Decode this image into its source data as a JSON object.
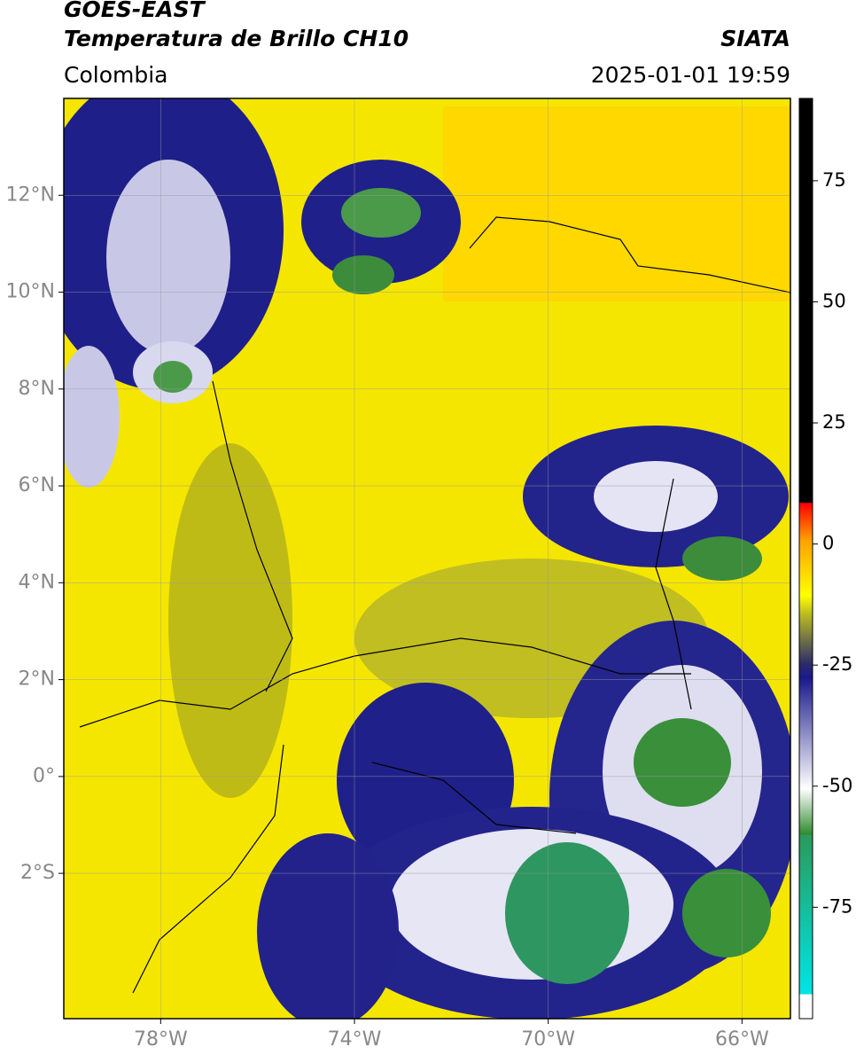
{
  "header": {
    "title": "GOES-EAST",
    "subtitle": "Temperatura de Brillo CH10",
    "region": "Colombia",
    "source": "SIATA",
    "datetime": "2025-01-01 19:59"
  },
  "map": {
    "xlim": [
      -80,
      -65
    ],
    "ylim": [
      -5,
      14
    ],
    "xticks": [
      {
        "value": -78,
        "label": "78°W"
      },
      {
        "value": -74,
        "label": "74°W"
      },
      {
        "value": -70,
        "label": "70°W"
      },
      {
        "value": -66,
        "label": "66°W"
      }
    ],
    "yticks": [
      {
        "value": 12,
        "label": "12°N"
      },
      {
        "value": 10,
        "label": "10°N"
      },
      {
        "value": 8,
        "label": "8°N"
      },
      {
        "value": 6,
        "label": "6°N"
      },
      {
        "value": 4,
        "label": "4°N"
      },
      {
        "value": 2,
        "label": "2°N"
      },
      {
        "value": 0,
        "label": "0°"
      },
      {
        "value": -2,
        "label": "2°S"
      }
    ],
    "grid": true
  },
  "colorbar": {
    "lim": [
      -98,
      92
    ],
    "ticks": [
      75,
      50,
      25,
      0,
      -25,
      -50,
      -75
    ]
  }
}
